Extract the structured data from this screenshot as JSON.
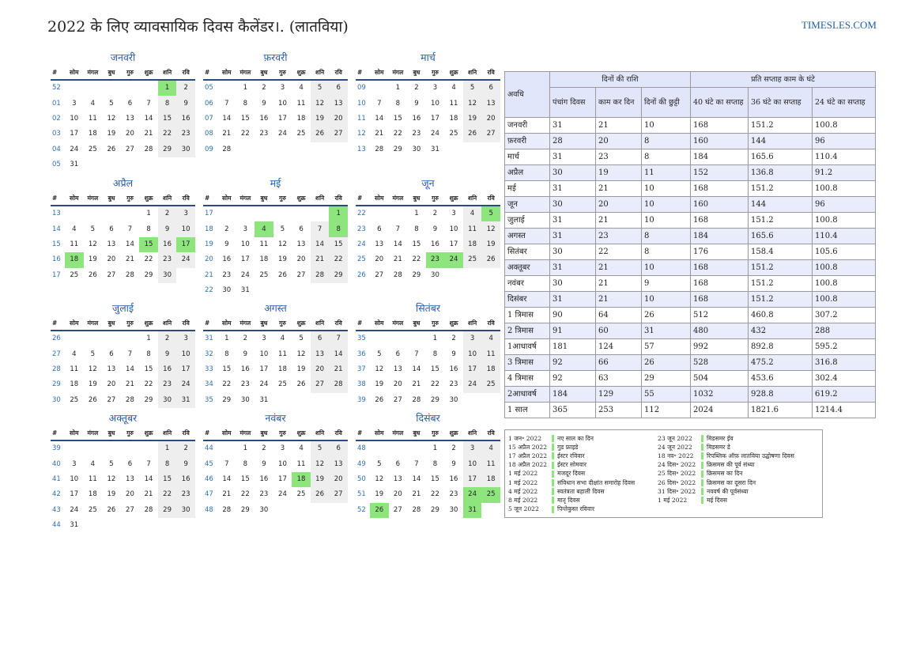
{
  "title": "2022 के लिए व्यावसायिक दिवस कैलेंडर।. (लातविया)",
  "brand": "TIMESLES.COM",
  "colors": {
    "holiday": "#8ee57e",
    "weekend": "#eeeeee",
    "week_number": "#2e6fb5",
    "month_name": "#2a5ea3",
    "header_bg": "#e1e6fb"
  },
  "weekday_headers": [
    "#",
    "सोम",
    "मंगल",
    "बुध",
    "गुरु",
    "शुक्र",
    "शनि",
    "रवि"
  ],
  "months": [
    {
      "name": "जनवरी",
      "rows": [
        [
          "52",
          "",
          "",
          "",
          "",
          "",
          "1",
          "2"
        ],
        [
          "01",
          "3",
          "4",
          "5",
          "6",
          "7",
          "8",
          "9"
        ],
        [
          "02",
          "10",
          "11",
          "12",
          "13",
          "14",
          "15",
          "16"
        ],
        [
          "03",
          "17",
          "18",
          "19",
          "20",
          "21",
          "22",
          "23"
        ],
        [
          "04",
          "24",
          "25",
          "26",
          "27",
          "28",
          "29",
          "30"
        ],
        [
          "05",
          "31",
          "",
          "",
          "",
          "",
          "",
          ""
        ]
      ],
      "holidays": [
        "1"
      ]
    },
    {
      "name": "फ़रवरी",
      "rows": [
        [
          "05",
          "",
          "1",
          "2",
          "3",
          "4",
          "5",
          "6"
        ],
        [
          "06",
          "7",
          "8",
          "9",
          "10",
          "11",
          "12",
          "13"
        ],
        [
          "07",
          "14",
          "15",
          "16",
          "17",
          "18",
          "19",
          "20"
        ],
        [
          "08",
          "21",
          "22",
          "23",
          "24",
          "25",
          "26",
          "27"
        ],
        [
          "09",
          "28",
          "",
          "",
          "",
          "",
          "",
          ""
        ]
      ],
      "holidays": []
    },
    {
      "name": "मार्च",
      "rows": [
        [
          "09",
          "",
          "1",
          "2",
          "3",
          "4",
          "5",
          "6"
        ],
        [
          "10",
          "7",
          "8",
          "9",
          "10",
          "11",
          "12",
          "13"
        ],
        [
          "11",
          "14",
          "15",
          "16",
          "17",
          "18",
          "19",
          "20"
        ],
        [
          "12",
          "21",
          "22",
          "23",
          "24",
          "25",
          "26",
          "27"
        ],
        [
          "13",
          "28",
          "29",
          "30",
          "31",
          "",
          "",
          ""
        ]
      ],
      "holidays": []
    },
    {
      "name": "अप्रैल",
      "rows": [
        [
          "13",
          "",
          "",
          "",
          "",
          "1",
          "2",
          "3"
        ],
        [
          "14",
          "4",
          "5",
          "6",
          "7",
          "8",
          "9",
          "10"
        ],
        [
          "15",
          "11",
          "12",
          "13",
          "14",
          "15",
          "16",
          "17"
        ],
        [
          "16",
          "18",
          "19",
          "20",
          "21",
          "22",
          "23",
          "24"
        ],
        [
          "17",
          "25",
          "26",
          "27",
          "28",
          "29",
          "30",
          ""
        ]
      ],
      "holidays": [
        "15",
        "17",
        "18"
      ]
    },
    {
      "name": "मई",
      "rows": [
        [
          "17",
          "",
          "",
          "",
          "",
          "",
          "",
          "1"
        ],
        [
          "18",
          "2",
          "3",
          "4",
          "5",
          "6",
          "7",
          "8"
        ],
        [
          "19",
          "9",
          "10",
          "11",
          "12",
          "13",
          "14",
          "15"
        ],
        [
          "20",
          "16",
          "17",
          "18",
          "19",
          "20",
          "21",
          "22"
        ],
        [
          "21",
          "23",
          "24",
          "25",
          "26",
          "27",
          "28",
          "29"
        ],
        [
          "22",
          "30",
          "31",
          "",
          "",
          "",
          "",
          ""
        ]
      ],
      "holidays": [
        "1",
        "4",
        "8"
      ]
    },
    {
      "name": "जून",
      "rows": [
        [
          "22",
          "",
          "",
          "1",
          "2",
          "3",
          "4",
          "5"
        ],
        [
          "23",
          "6",
          "7",
          "8",
          "9",
          "10",
          "11",
          "12"
        ],
        [
          "24",
          "13",
          "14",
          "15",
          "16",
          "17",
          "18",
          "19"
        ],
        [
          "25",
          "20",
          "21",
          "22",
          "23",
          "24",
          "25",
          "26"
        ],
        [
          "26",
          "27",
          "28",
          "29",
          "30",
          "",
          "",
          ""
        ]
      ],
      "holidays": [
        "5",
        "23",
        "24"
      ]
    },
    {
      "name": "जुलाई",
      "rows": [
        [
          "26",
          "",
          "",
          "",
          "",
          "1",
          "2",
          "3"
        ],
        [
          "27",
          "4",
          "5",
          "6",
          "7",
          "8",
          "9",
          "10"
        ],
        [
          "28",
          "11",
          "12",
          "13",
          "14",
          "15",
          "16",
          "17"
        ],
        [
          "29",
          "18",
          "19",
          "20",
          "21",
          "22",
          "23",
          "24"
        ],
        [
          "30",
          "25",
          "26",
          "27",
          "28",
          "29",
          "30",
          "31"
        ]
      ],
      "holidays": []
    },
    {
      "name": "अगस्त",
      "rows": [
        [
          "31",
          "1",
          "2",
          "3",
          "4",
          "5",
          "6",
          "7"
        ],
        [
          "32",
          "8",
          "9",
          "10",
          "11",
          "12",
          "13",
          "14"
        ],
        [
          "33",
          "15",
          "16",
          "17",
          "18",
          "19",
          "20",
          "21"
        ],
        [
          "34",
          "22",
          "23",
          "24",
          "25",
          "26",
          "27",
          "28"
        ],
        [
          "35",
          "29",
          "30",
          "31",
          "",
          "",
          "",
          ""
        ]
      ],
      "holidays": []
    },
    {
      "name": "सितंबर",
      "rows": [
        [
          "35",
          "",
          "",
          "",
          "1",
          "2",
          "3",
          "4"
        ],
        [
          "36",
          "5",
          "6",
          "7",
          "8",
          "9",
          "10",
          "11"
        ],
        [
          "37",
          "12",
          "13",
          "14",
          "15",
          "16",
          "17",
          "18"
        ],
        [
          "38",
          "19",
          "20",
          "21",
          "22",
          "23",
          "24",
          "25"
        ],
        [
          "39",
          "26",
          "27",
          "28",
          "29",
          "30",
          "",
          ""
        ]
      ],
      "holidays": []
    },
    {
      "name": "अक्तूबर",
      "rows": [
        [
          "39",
          "",
          "",
          "",
          "",
          "",
          "1",
          "2"
        ],
        [
          "40",
          "3",
          "4",
          "5",
          "6",
          "7",
          "8",
          "9"
        ],
        [
          "41",
          "10",
          "11",
          "12",
          "13",
          "14",
          "15",
          "16"
        ],
        [
          "42",
          "17",
          "18",
          "19",
          "20",
          "21",
          "22",
          "23"
        ],
        [
          "43",
          "24",
          "25",
          "26",
          "27",
          "28",
          "29",
          "30"
        ],
        [
          "44",
          "31",
          "",
          "",
          "",
          "",
          "",
          ""
        ]
      ],
      "holidays": []
    },
    {
      "name": "नवंबर",
      "rows": [
        [
          "44",
          "",
          "1",
          "2",
          "3",
          "4",
          "5",
          "6"
        ],
        [
          "45",
          "7",
          "8",
          "9",
          "10",
          "11",
          "12",
          "13"
        ],
        [
          "46",
          "14",
          "15",
          "16",
          "17",
          "18",
          "19",
          "20"
        ],
        [
          "47",
          "21",
          "22",
          "23",
          "24",
          "25",
          "26",
          "27"
        ],
        [
          "48",
          "28",
          "29",
          "30",
          "",
          "",
          "",
          ""
        ]
      ],
      "holidays": [
        "18"
      ]
    },
    {
      "name": "दिसंबर",
      "rows": [
        [
          "48",
          "",
          "",
          "",
          "1",
          "2",
          "3",
          "4"
        ],
        [
          "49",
          "5",
          "6",
          "7",
          "8",
          "9",
          "10",
          "11"
        ],
        [
          "50",
          "12",
          "13",
          "14",
          "15",
          "16",
          "17",
          "18"
        ],
        [
          "51",
          "19",
          "20",
          "21",
          "22",
          "23",
          "24",
          "25"
        ],
        [
          "52",
          "26",
          "27",
          "28",
          "29",
          "30",
          "31",
          ""
        ]
      ],
      "holidays": [
        "24",
        "25",
        "26",
        "31"
      ]
    }
  ],
  "summary": {
    "period_header": "अवधि",
    "group_days": "दिनों की राशि",
    "group_hours": "प्रति सप्ताह काम के घंटे",
    "sub_headers": [
      "पंचांग दिवस",
      "काम कर दिन",
      "दिनों की छुट्टी",
      "40 घंटे का सप्ताह",
      "36 घंटे का सप्ताह",
      "24 घंटे का सप्ताह"
    ],
    "rows": [
      [
        "जनवरी",
        "31",
        "21",
        "10",
        "168",
        "151.2",
        "100.8"
      ],
      [
        "फ़रवरी",
        "28",
        "20",
        "8",
        "160",
        "144",
        "96"
      ],
      [
        "मार्च",
        "31",
        "23",
        "8",
        "184",
        "165.6",
        "110.4"
      ],
      [
        "अप्रैल",
        "30",
        "19",
        "11",
        "152",
        "136.8",
        "91.2"
      ],
      [
        "मई",
        "31",
        "21",
        "10",
        "168",
        "151.2",
        "100.8"
      ],
      [
        "जून",
        "30",
        "20",
        "10",
        "160",
        "144",
        "96"
      ],
      [
        "जुलाई",
        "31",
        "21",
        "10",
        "168",
        "151.2",
        "100.8"
      ],
      [
        "अगस्त",
        "31",
        "23",
        "8",
        "184",
        "165.6",
        "110.4"
      ],
      [
        "सितंबर",
        "30",
        "22",
        "8",
        "176",
        "158.4",
        "105.6"
      ],
      [
        "अक्तूबर",
        "31",
        "21",
        "10",
        "168",
        "151.2",
        "100.8"
      ],
      [
        "नवंबर",
        "30",
        "21",
        "9",
        "168",
        "151.2",
        "100.8"
      ],
      [
        "दिसंबर",
        "31",
        "21",
        "10",
        "168",
        "151.2",
        "100.8"
      ],
      [
        "1 त्रिमास",
        "90",
        "64",
        "26",
        "512",
        "460.8",
        "307.2"
      ],
      [
        "2 त्रिमास",
        "91",
        "60",
        "31",
        "480",
        "432",
        "288"
      ],
      [
        "1आधावर्ष",
        "181",
        "124",
        "57",
        "992",
        "892.8",
        "595.2"
      ],
      [
        "3 त्रिमास",
        "92",
        "66",
        "26",
        "528",
        "475.2",
        "316.8"
      ],
      [
        "4 त्रिमास",
        "92",
        "63",
        "29",
        "504",
        "453.6",
        "302.4"
      ],
      [
        "2आधावर्ष",
        "184",
        "129",
        "55",
        "1032",
        "928.8",
        "619.2"
      ],
      [
        "1 साल",
        "365",
        "253",
        "112",
        "2024",
        "1821.6",
        "1214.4"
      ]
    ]
  },
  "holidays_left": [
    [
      "1 जन॰ 2022",
      "नए साल का दिन"
    ],
    [
      "15 अप्रैल 2022",
      "गुड फ्राइडे"
    ],
    [
      "17 अप्रैल 2022",
      "ईस्टर रविवार"
    ],
    [
      "18 अप्रैल 2022",
      "ईस्टर सोमवार"
    ],
    [
      "1 मई 2022",
      "मजदूर दिवस"
    ],
    [
      "1 मई 2022",
      "संविधान सभा दीक्षांत समारोह दिवस"
    ],
    [
      "4 मई 2022",
      "स्वतंत्रता बहाली दिवस"
    ],
    [
      "8 मई 2022",
      "मातृ दिवस"
    ],
    [
      "5 जून 2022",
      "पिन्तेकुस्त रविवार"
    ]
  ],
  "holidays_right": [
    [
      "23 जून 2022",
      "मिडसमर ईव"
    ],
    [
      "24 जून 2022",
      "मिडसमर डे"
    ],
    [
      "18 नव॰ 2022",
      "रिपब्लिक ऑफ़ लातविया उद्घोषणा दिवस"
    ],
    [
      "24 दिस॰ 2022",
      "क्रिसमस की पूर्व संध्या"
    ],
    [
      "25 दिस॰ 2022",
      "क्रिसमस का दिन"
    ],
    [
      "26 दिस॰ 2022",
      "क्रिसमस का दूसरा दिन"
    ],
    [
      "31 दिस॰ 2022",
      "नववर्ष की पूर्वसंध्या"
    ],
    [
      "1 मई 2022",
      "मई दिवस"
    ]
  ]
}
